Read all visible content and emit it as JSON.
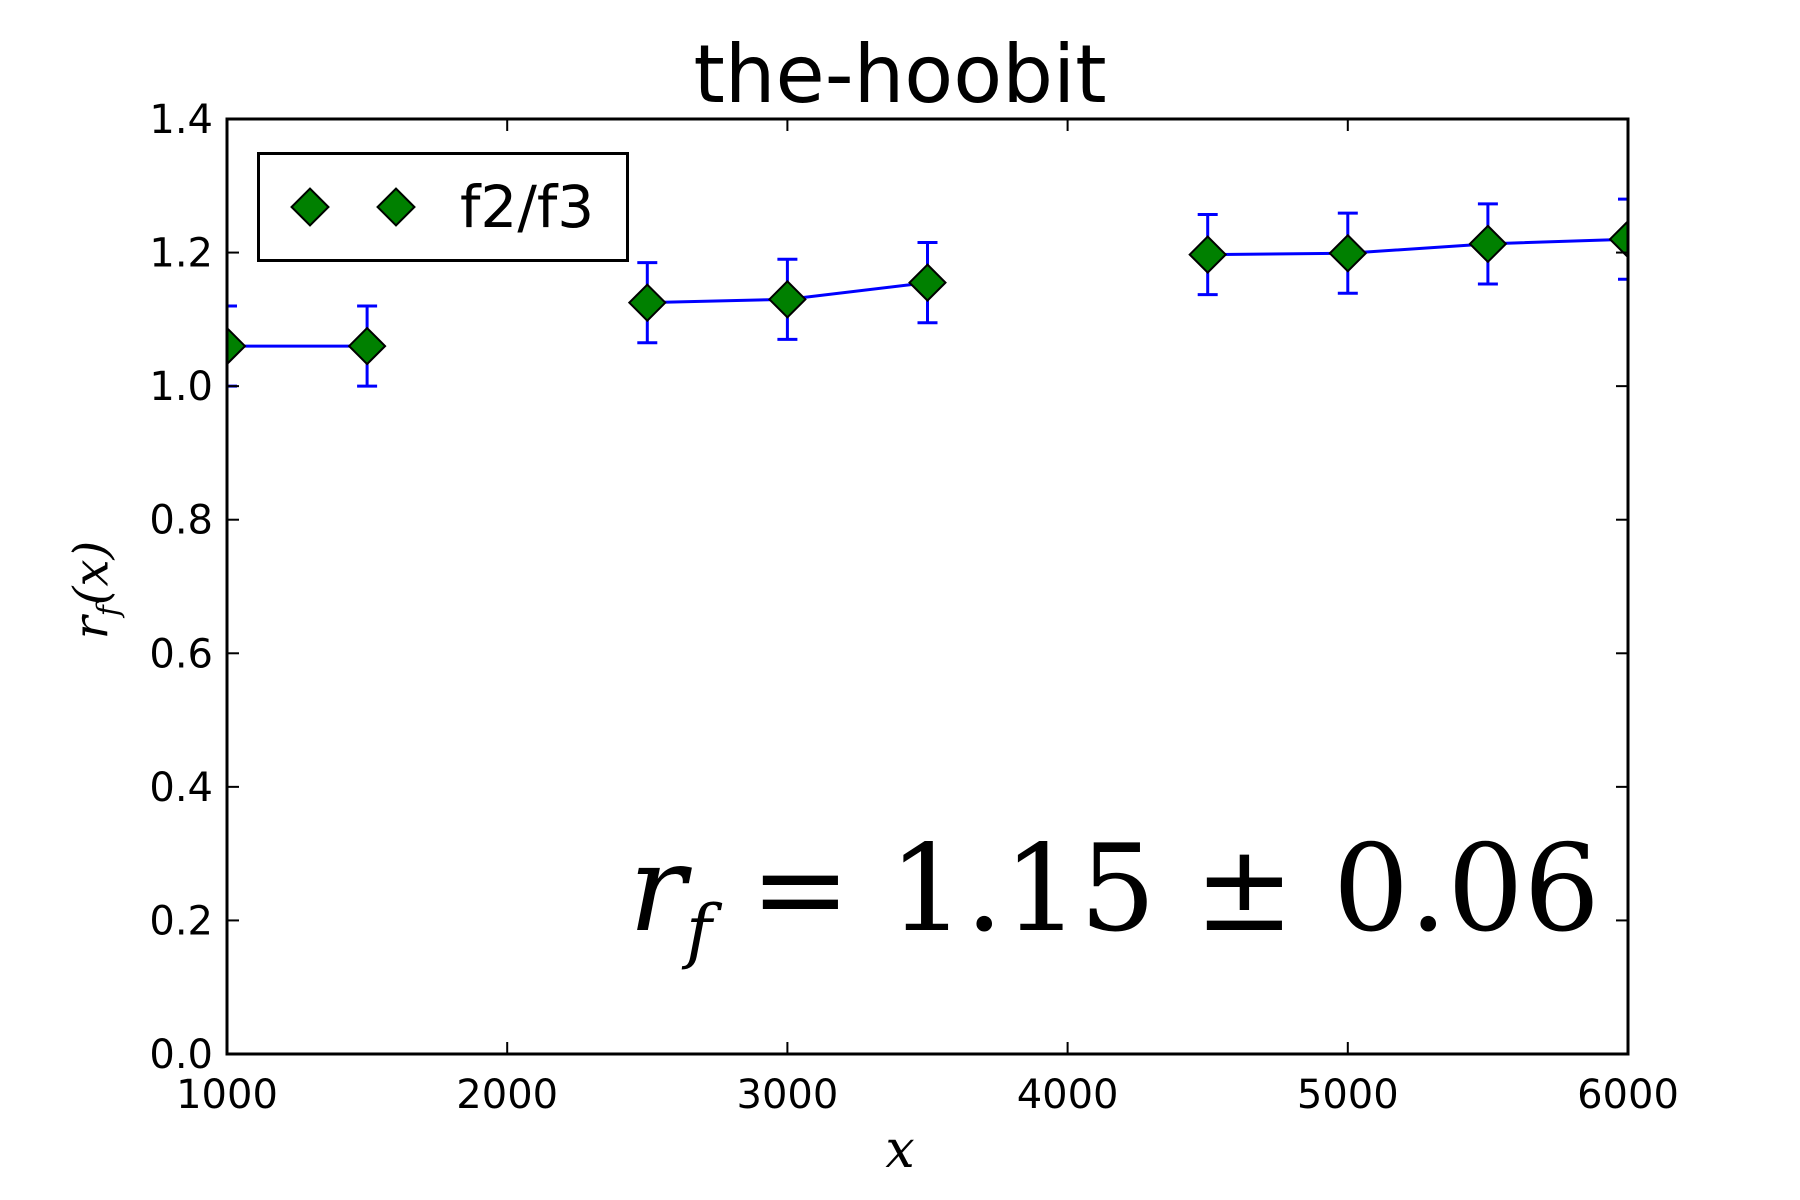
{
  "chart_data": {
    "type": "line",
    "title": "the-hoobit",
    "xlabel": "x",
    "ylabel": "r_f(x)",
    "xlim": [
      1000,
      6000
    ],
    "ylim": [
      0.0,
      1.4
    ],
    "x_ticks": [
      "1000",
      "2000",
      "3000",
      "4000",
      "5000",
      "6000"
    ],
    "y_ticks": [
      "0.0",
      "0.2",
      "0.4",
      "0.6",
      "0.8",
      "1.0",
      "1.2",
      "1.4"
    ],
    "grid": false,
    "legend_position": "top-left",
    "annotation": "r_f = 1.15 ± 0.06",
    "series": [
      {
        "name": "f2/f3",
        "line_color": "#0000ff",
        "marker_color": "#008000",
        "marker": "diamond",
        "segments": [
          [
            {
              "x": 1000,
              "y": 1.06,
              "err": 0.06
            },
            {
              "x": 1500,
              "y": 1.06,
              "err": 0.06
            }
          ],
          [
            {
              "x": 2500,
              "y": 1.125,
              "err": 0.06
            },
            {
              "x": 3000,
              "y": 1.13,
              "err": 0.06
            },
            {
              "x": 3500,
              "y": 1.155,
              "err": 0.06
            }
          ],
          [
            {
              "x": 4500,
              "y": 1.197,
              "err": 0.06
            },
            {
              "x": 5000,
              "y": 1.199,
              "err": 0.06
            },
            {
              "x": 5500,
              "y": 1.213,
              "err": 0.06
            },
            {
              "x": 6000,
              "y": 1.22,
              "err": 0.06
            }
          ]
        ]
      }
    ]
  }
}
